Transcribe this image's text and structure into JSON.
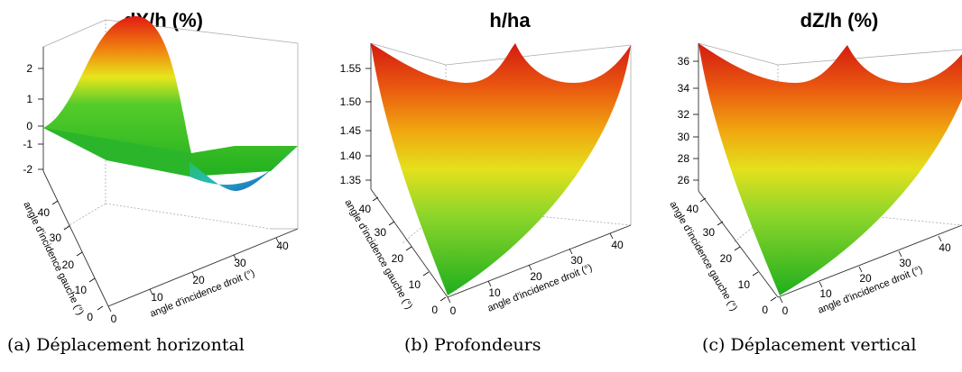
{
  "chart_data": [
    {
      "type": "surface3d",
      "title": "dX/h (%)",
      "caption": "(a) Déplacement horizontal",
      "xlabel": "angle d'incidence droit (°)",
      "ylabel": "angle d'incidence gauche (°)",
      "x_ticks": [
        "0",
        "10",
        "20",
        "30",
        "40"
      ],
      "y_ticks": [
        "0",
        "10",
        "20",
        "30",
        "40"
      ],
      "z_ticks": [
        "2",
        "1",
        "0",
        "-1",
        "-2"
      ],
      "xlim": [
        0,
        45
      ],
      "ylim": [
        0,
        45
      ],
      "zlim": [
        -3,
        3
      ]
    },
    {
      "type": "surface3d",
      "title": "h/ha",
      "caption": "(b) Profondeurs",
      "xlabel": "angle d'incidence droit (°)",
      "ylabel": "angle d'incidence gauche (°)",
      "x_ticks": [
        "0",
        "10",
        "20",
        "30",
        "40"
      ],
      "y_ticks": [
        "0",
        "10",
        "20",
        "30",
        "40"
      ],
      "z_ticks": [
        "1.55",
        "1.50",
        "1.45",
        "1.40",
        "1.35"
      ],
      "xlim": [
        0,
        45
      ],
      "ylim": [
        0,
        45
      ],
      "zlim": [
        1.3,
        1.6
      ]
    },
    {
      "type": "surface3d",
      "title": "dZ/h (%)",
      "caption": "(c) Déplacement vertical",
      "xlabel": "angle d'incidence droit (°)",
      "ylabel": "angle d'incidence gauche (°)",
      "x_ticks": [
        "0",
        "10",
        "20",
        "30",
        "40"
      ],
      "y_ticks": [
        "0",
        "10",
        "20",
        "30",
        "40"
      ],
      "z_ticks": [
        "36",
        "34",
        "32",
        "30",
        "28",
        "26"
      ],
      "xlim": [
        0,
        45
      ],
      "ylim": [
        0,
        45
      ],
      "zlim": [
        25,
        37
      ]
    }
  ]
}
